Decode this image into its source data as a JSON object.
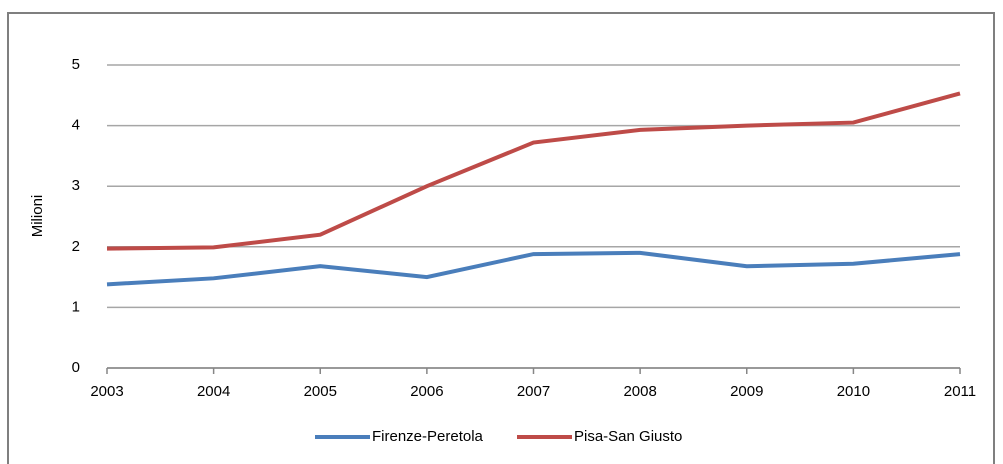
{
  "chart_data": {
    "type": "line",
    "y_label": "Milioni",
    "categories": [
      "2003",
      "2004",
      "2005",
      "2006",
      "2007",
      "2008",
      "2009",
      "2010",
      "2011"
    ],
    "series": [
      {
        "name": "Firenze-Peretola",
        "color": "#4a7ebb",
        "values": [
          1.38,
          1.48,
          1.68,
          1.5,
          1.88,
          1.9,
          1.68,
          1.72,
          1.88
        ]
      },
      {
        "name": "Pisa-San Giusto",
        "color": "#be4b48",
        "values": [
          1.97,
          1.99,
          2.2,
          3.0,
          3.72,
          3.93,
          4.0,
          4.05,
          4.53
        ]
      }
    ],
    "ylim": [
      0,
      5
    ],
    "yticks": [
      0,
      1,
      2,
      3,
      4,
      5
    ],
    "grid": true,
    "legend": "bottom"
  }
}
